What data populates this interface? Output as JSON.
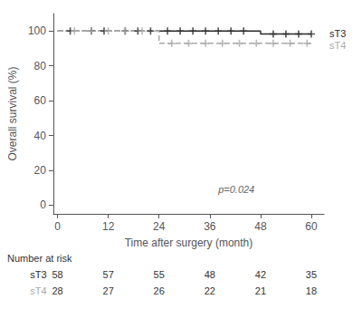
{
  "chart_data": {
    "type": "line",
    "xlabel": "Time after surgery (month)",
    "ylabel": "Overall survival (%)",
    "xlim": [
      -1,
      63
    ],
    "ylim": [
      -5,
      110
    ],
    "xticks": [
      0,
      12,
      24,
      36,
      48,
      60
    ],
    "yticks": [
      0,
      20,
      40,
      60,
      80,
      100
    ],
    "grid": false,
    "series": [
      {
        "name": "sT3",
        "color": "#2b2b2b",
        "marker": "plus",
        "segments": [
          {
            "line_style": "dashed",
            "x": [
              0,
              24
            ],
            "values": [
              100,
              100
            ]
          },
          {
            "line_style": "solid",
            "x": [
              24,
              48,
              48,
              60
            ],
            "values": [
              100,
              100,
              98.3,
              98.3
            ]
          }
        ],
        "censor_x": [
          3,
          8,
          11,
          16,
          19,
          22,
          26,
          29,
          32,
          35,
          38,
          41,
          44,
          51,
          54,
          57,
          60
        ],
        "censor_values": [
          100,
          100,
          100,
          100,
          100,
          100,
          100,
          100,
          100,
          100,
          100,
          100,
          100,
          98.3,
          98.3,
          98.3,
          98.3
        ]
      },
      {
        "name": "sT4",
        "color": "#aaaaaa",
        "marker": "plus",
        "segments": [
          {
            "line_style": "dashed",
            "x": [
              0,
              24,
              24,
              60
            ],
            "values": [
              100,
              100,
              92.9,
              92.9
            ]
          }
        ],
        "censor_x": [
          4,
          8,
          12,
          16,
          20,
          27,
          31,
          35,
          39,
          43,
          47,
          51,
          55,
          59
        ],
        "censor_values": [
          100,
          100,
          100,
          100,
          100,
          92.9,
          92.9,
          92.9,
          92.9,
          92.9,
          92.9,
          92.9,
          92.9,
          92.9
        ]
      }
    ],
    "annotations": [
      {
        "text": "p=0.024",
        "x": 38,
        "y": 6,
        "color": "#666666"
      }
    ],
    "risk_table": {
      "label": "Number at risk",
      "x": [
        0,
        12,
        24,
        36,
        48,
        60
      ],
      "rows": [
        {
          "name": "sT3",
          "values": [
            58,
            57,
            55,
            48,
            42,
            35
          ]
        },
        {
          "name": "sT4",
          "values": [
            28,
            27,
            26,
            22,
            21,
            18
          ]
        }
      ]
    }
  }
}
